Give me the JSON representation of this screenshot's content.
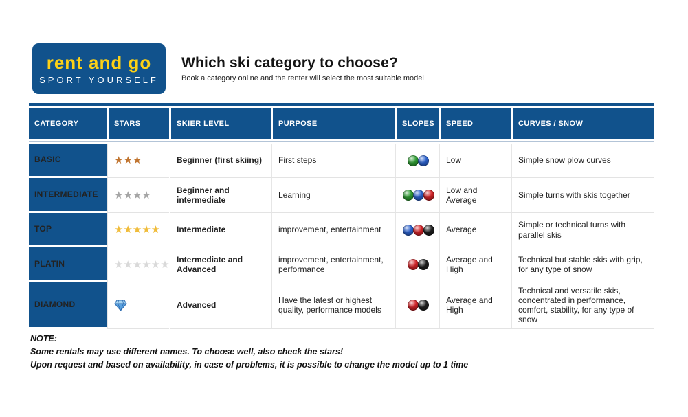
{
  "logo": {
    "brand": "rent and go",
    "tagline": "SPORT YOURSELF",
    "background_color": "#11528c",
    "brand_color": "#fdd116",
    "tagline_color": "#ffffff"
  },
  "headline": {
    "title": "Which ski category to choose?",
    "subtitle": "Book a category online and the renter will select the most suitable model"
  },
  "table": {
    "header_color": "#11528c",
    "columns": [
      "CATEGORY",
      "STARS",
      "SKIER LEVEL",
      "PURPOSE",
      "SLOPES",
      "SPEED",
      "CURVES / SNOW"
    ],
    "slope_colors": {
      "green": "#2f9e33",
      "blue": "#2b62cf",
      "red": "#d42328",
      "black": "#1e1e1e"
    },
    "rows": [
      {
        "category": "BASIC",
        "stars": {
          "count": 3,
          "color": "#c0742f"
        },
        "skier_level": "Beginner (first skiing)",
        "purpose": "First steps",
        "slopes": [
          "green",
          "blue"
        ],
        "speed": "Low",
        "curves_snow": "Simple snow plow curves"
      },
      {
        "category": "INTERMEDIATE",
        "stars": {
          "count": 4,
          "color": "#a5a5a5"
        },
        "skier_level": "Beginner and intermediate",
        "purpose": "Learning",
        "slopes": [
          "green",
          "blue",
          "red"
        ],
        "speed": "Low and Average",
        "curves_snow": "Simple turns with skis together"
      },
      {
        "category": "TOP",
        "stars": {
          "count": 5,
          "color": "#f0bc3a"
        },
        "skier_level": "Intermediate",
        "purpose": "improvement, entertainment",
        "slopes": [
          "blue",
          "red",
          "black"
        ],
        "speed": "Average",
        "curves_snow": "Simple or technical turns with parallel skis"
      },
      {
        "category": "PLATIN",
        "stars": {
          "count": 6,
          "color": "#d9d9d9"
        },
        "skier_level": "Intermediate and Advanced",
        "purpose": "improvement, entertainment, performance",
        "slopes": [
          "red",
          "black"
        ],
        "speed": "Average and High",
        "curves_snow": "Technical but stable skis with grip, for any type of snow"
      },
      {
        "category": "DIAMOND",
        "stars": {
          "icon": "diamond",
          "count": 1,
          "color": "#5aa2e0"
        },
        "skier_level": "Advanced",
        "purpose": "Have the latest or highest quality, performance models",
        "slopes": [
          "red",
          "black"
        ],
        "speed": "Average and High",
        "curves_snow": "Technical and versatile skis, concentrated in performance, comfort, stability, for any type of snow"
      }
    ]
  },
  "notes": {
    "title": "NOTE:",
    "lines": [
      "Some rentals may use different names. To choose well, also check the stars!",
      "Upon request and based on availability, in case of problems, it is possible to change the model up to 1 time"
    ]
  }
}
